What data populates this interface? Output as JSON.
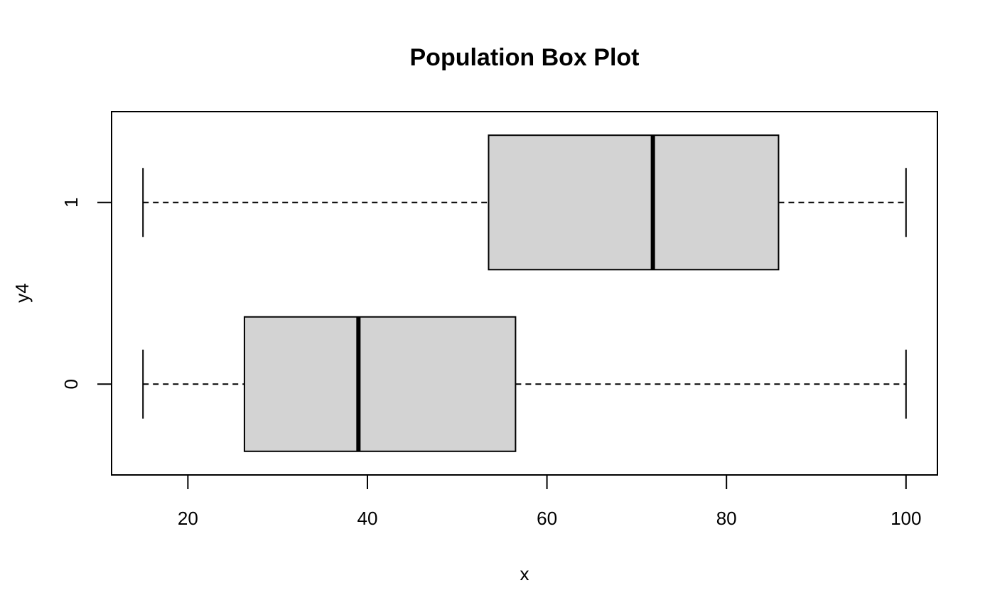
{
  "chart_data": {
    "type": "boxplot",
    "orientation": "horizontal",
    "title": "Population Box Plot",
    "xlabel": "x",
    "ylabel": "y4",
    "xlim": [
      11.5,
      103.5
    ],
    "x_ticks": [
      20,
      40,
      60,
      80,
      100
    ],
    "categories": [
      "0",
      "1"
    ],
    "box_fill": "#d3d3d3",
    "boxes": [
      {
        "category": "0",
        "min": 15,
        "q1": 26.3,
        "median": 39,
        "q3": 56.5,
        "max": 100
      },
      {
        "category": "1",
        "min": 15,
        "q1": 53.5,
        "median": 71.8,
        "q3": 85.8,
        "max": 100
      }
    ],
    "grid": false,
    "legend": "none"
  }
}
